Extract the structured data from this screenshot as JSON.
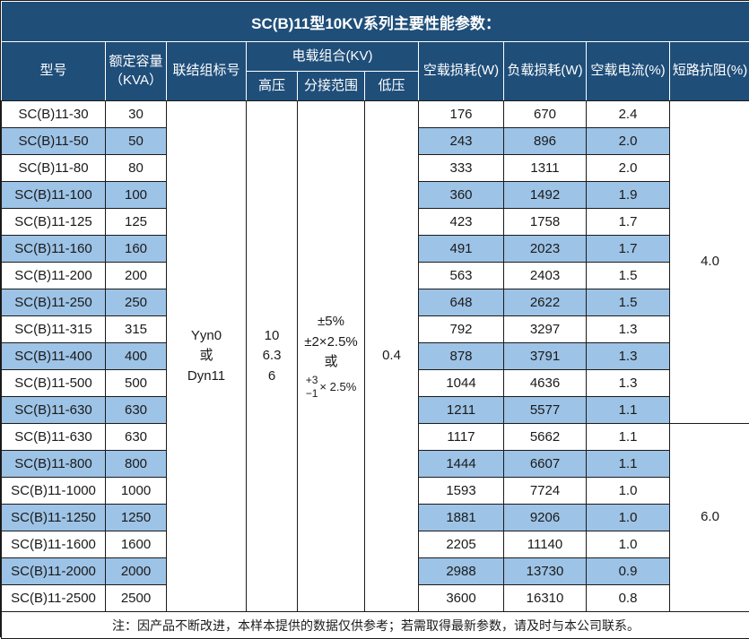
{
  "title": "SC(B)11型10KV系列主要性能参数：",
  "columns": {
    "model": "型号",
    "capacity": "额定容量\n（KVA）",
    "connection": "联结组标号",
    "voltage_group": "电载组合(KV)",
    "hv": "高压",
    "tap_range": "分接范围",
    "lv": "低压",
    "no_load_loss": "空载损耗(W)",
    "load_loss": "负载损耗(W)",
    "no_load_current": "空载电流(%)",
    "impedance": "短路抗阻(%)"
  },
  "merged": {
    "connection": "Yyn0\n或\nDyn11",
    "hv": "10\n6.3\n6",
    "tap_lines": "±5%\n±2×2.5%\n或",
    "tap_fraction": {
      "top": "+3",
      "bottom": "−1",
      "suffix": "× 2.5%"
    },
    "lv": "0.4"
  },
  "impedance_groups": [
    {
      "value": "4.0",
      "start": 0,
      "span": 12
    },
    {
      "value": "6.0",
      "start": 12,
      "span": 7
    }
  ],
  "rows": [
    {
      "model": "SC(B)11-30",
      "kva": "30",
      "no_load_loss": "176",
      "load_loss": "670",
      "no_load_current": "2.4"
    },
    {
      "model": "SC(B)11-50",
      "kva": "50",
      "no_load_loss": "243",
      "load_loss": "896",
      "no_load_current": "2.0"
    },
    {
      "model": "SC(B)11-80",
      "kva": "80",
      "no_load_loss": "333",
      "load_loss": "1311",
      "no_load_current": "2.0"
    },
    {
      "model": "SC(B)11-100",
      "kva": "100",
      "no_load_loss": "360",
      "load_loss": "1492",
      "no_load_current": "1.9"
    },
    {
      "model": "SC(B)11-125",
      "kva": "125",
      "no_load_loss": "423",
      "load_loss": "1758",
      "no_load_current": "1.7"
    },
    {
      "model": "SC(B)11-160",
      "kva": "160",
      "no_load_loss": "491",
      "load_loss": "2023",
      "no_load_current": "1.7"
    },
    {
      "model": "SC(B)11-200",
      "kva": "200",
      "no_load_loss": "563",
      "load_loss": "2403",
      "no_load_current": "1.5"
    },
    {
      "model": "SC(B)11-250",
      "kva": "250",
      "no_load_loss": "648",
      "load_loss": "2622",
      "no_load_current": "1.5"
    },
    {
      "model": "SC(B)11-315",
      "kva": "315",
      "no_load_loss": "792",
      "load_loss": "3297",
      "no_load_current": "1.3"
    },
    {
      "model": "SC(B)11-400",
      "kva": "400",
      "no_load_loss": "878",
      "load_loss": "3791",
      "no_load_current": "1.3"
    },
    {
      "model": "SC(B)11-500",
      "kva": "500",
      "no_load_loss": "1044",
      "load_loss": "4636",
      "no_load_current": "1.3"
    },
    {
      "model": "SC(B)11-630",
      "kva": "630",
      "no_load_loss": "1211",
      "load_loss": "5577",
      "no_load_current": "1.1"
    },
    {
      "model": "SC(B)11-630",
      "kva": "630",
      "no_load_loss": "1117",
      "load_loss": "5662",
      "no_load_current": "1.1"
    },
    {
      "model": "SC(B)11-800",
      "kva": "800",
      "no_load_loss": "1444",
      "load_loss": "6607",
      "no_load_current": "1.1"
    },
    {
      "model": "SC(B)11-1000",
      "kva": "1000",
      "no_load_loss": "1593",
      "load_loss": "7724",
      "no_load_current": "1.0"
    },
    {
      "model": "SC(B)11-1250",
      "kva": "1250",
      "no_load_loss": "1881",
      "load_loss": "9206",
      "no_load_current": "1.0"
    },
    {
      "model": "SC(B)11-1600",
      "kva": "1600",
      "no_load_loss": "2205",
      "load_loss": "11140",
      "no_load_current": "1.0"
    },
    {
      "model": "SC(B)11-2000",
      "kva": "2000",
      "no_load_loss": "2988",
      "load_loss": "13730",
      "no_load_current": "0.9"
    },
    {
      "model": "SC(B)11-2500",
      "kva": "2500",
      "no_load_loss": "3600",
      "load_loss": "16310",
      "no_load_current": "0.8"
    }
  ],
  "note": "注：因产品不断改进，本样本提供的数据仅供参考；若需取得最新参数，请及时与本公司联系。",
  "colors": {
    "header_bg": "#1F4E79",
    "stripe": "#9DC3E6",
    "border": "#1A1A1A",
    "header_text": "#FFFFFF"
  }
}
